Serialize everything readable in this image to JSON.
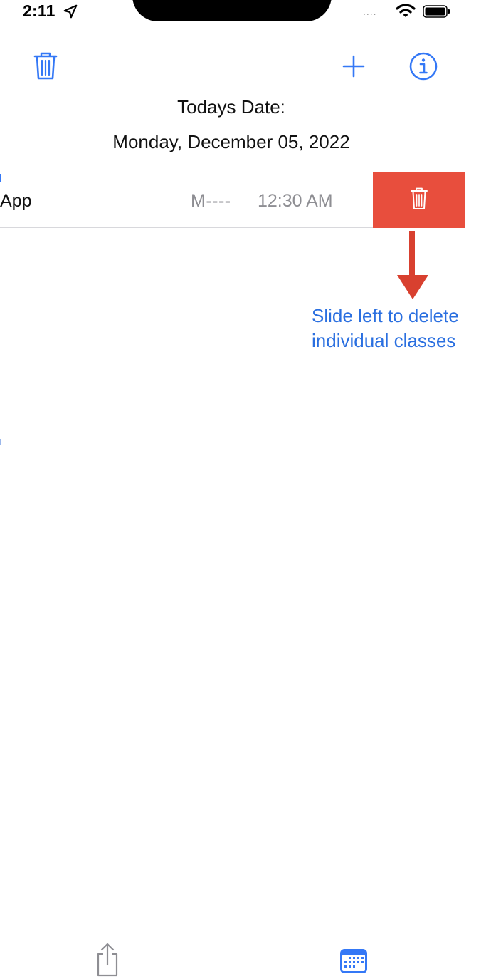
{
  "status_bar": {
    "time": "2:11",
    "signal": "....",
    "icons": [
      "location-arrow-icon",
      "wifi-icon",
      "battery-icon"
    ]
  },
  "nav": {
    "icons": [
      "trash-icon",
      "plus-icon",
      "info-icon"
    ]
  },
  "header": {
    "title": "Todays Date:",
    "date": "Monday, December 05, 2022"
  },
  "list": {
    "rows": [
      {
        "name": "App",
        "days": "M----",
        "time": "12:30 AM",
        "action_icon": "trash-icon"
      }
    ]
  },
  "annotation": {
    "line1": "Slide left to delete",
    "line2": "individual classes"
  },
  "toolbar": {
    "icons": [
      "share-icon",
      "calendar-icon"
    ]
  },
  "colors": {
    "accent": "#3478f6",
    "destructive": "#e84e3d",
    "secondary_text": "#8e8e93",
    "annotation": "#2a6fe0",
    "annotation_arrow": "#d8402f"
  }
}
